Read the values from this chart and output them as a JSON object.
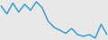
{
  "x": [
    0,
    1,
    2,
    3,
    4,
    5,
    6,
    7,
    8,
    9,
    10,
    11,
    12,
    13,
    14,
    15,
    16,
    17,
    18
  ],
  "y": [
    6.5,
    5.2,
    7.0,
    5.5,
    6.8,
    5.8,
    7.2,
    6.2,
    4.0,
    3.0,
    2.5,
    2.0,
    2.8,
    1.8,
    1.5,
    1.8,
    1.2,
    3.5,
    1.8
  ],
  "line_color": "#3d9dd1",
  "linewidth": 1.1,
  "background_color": "#e8e8e8"
}
